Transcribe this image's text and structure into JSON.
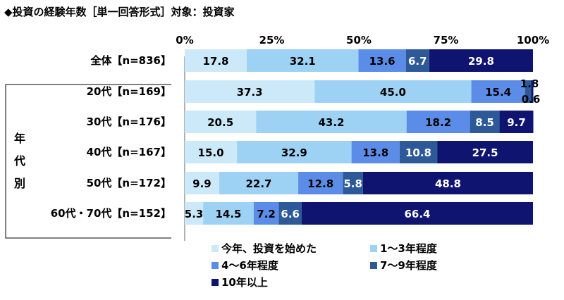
{
  "title": "◆投資の経験年数［単一回答形式］対象：投資家",
  "chart_data": {
    "type": "bar",
    "orientation": "horizontal",
    "stacked": "100%",
    "title": "◆投資の経験年数［単一回答形式］対象：投資家",
    "x_ticks": [
      "0%",
      "25%",
      "50%",
      "75%",
      "100%"
    ],
    "xlim": [
      0,
      100
    ],
    "group_label": "年代別",
    "categories": [
      "全体【n=836】",
      "20代【n=169】",
      "30代【n=176】",
      "40代【n=167】",
      "50代【n=172】",
      "60代・70代【n=152】"
    ],
    "series": [
      {
        "name": "今年、投資を始めた",
        "color": "#cce9f9",
        "values": [
          17.8,
          37.3,
          20.5,
          15.0,
          9.9,
          5.3
        ]
      },
      {
        "name": "1～3年程度",
        "color": "#9dd2f4",
        "values": [
          32.1,
          45.0,
          43.2,
          32.9,
          22.7,
          14.5
        ]
      },
      {
        "name": "4～6年程度",
        "color": "#5b8de8",
        "values": [
          13.6,
          15.4,
          18.2,
          13.8,
          12.8,
          7.2
        ]
      },
      {
        "name": "7～9年程度",
        "color": "#2e5999",
        "values": [
          6.7,
          1.8,
          8.5,
          10.8,
          5.8,
          6.6
        ]
      },
      {
        "name": "10年以上",
        "color": "#0e1470",
        "values": [
          29.8,
          0.6,
          9.7,
          27.5,
          48.8,
          66.4
        ]
      }
    ],
    "legend_position": "bottom"
  }
}
